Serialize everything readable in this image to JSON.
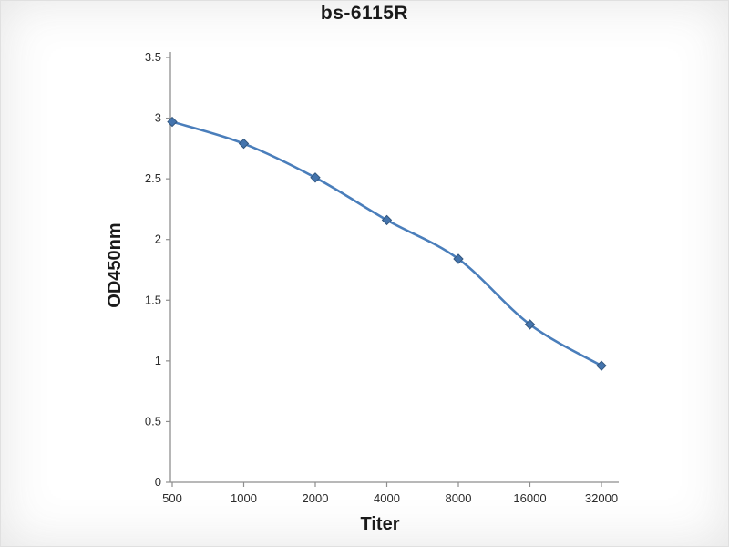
{
  "chart_data": {
    "type": "line",
    "title": "bs-6115R",
    "xlabel": "Titer",
    "ylabel": "OD450nm",
    "categories": [
      "500",
      "1000",
      "2000",
      "4000",
      "8000",
      "16000",
      "32000"
    ],
    "series": [
      {
        "name": "OD450nm",
        "values": [
          2.97,
          2.79,
          2.51,
          2.16,
          1.84,
          1.3,
          0.96
        ]
      }
    ],
    "ylim": [
      0,
      3.5
    ],
    "y_ticks": [
      0,
      0.5,
      1,
      1.5,
      2,
      2.5,
      3,
      3.5
    ],
    "grid": false,
    "legend_position": "none",
    "marker": "diamond",
    "smooth_line": true,
    "colors": {
      "line": "#4a7ebb",
      "marker_fill": "#4474ad",
      "marker_edge": "#33577f",
      "axis": "#8e8e8e",
      "tick_text": "#2b2b2b"
    }
  }
}
